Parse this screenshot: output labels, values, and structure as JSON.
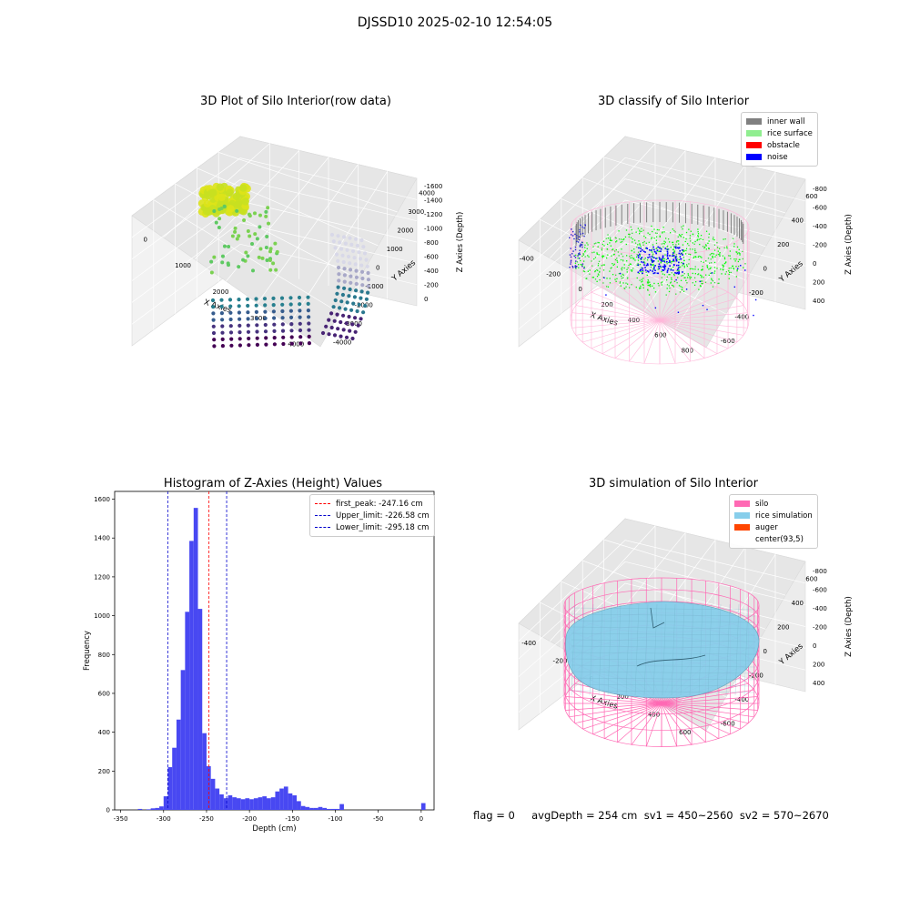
{
  "figure": {
    "title": "DJSSD10 2025-02-10 12:54:05",
    "footer": "flag = 0     avgDepth = 254 cm  sv1 = 450~2560  sv2 = 570~2670"
  },
  "colors": {
    "hist_bar": "#4848f2",
    "peak_line": "#ff0000",
    "limit_line": "#0000cc",
    "inner_wall": "#808080",
    "rice_surface": "#90ee90",
    "obstacle": "#ff0000",
    "noise": "#0000ff",
    "silo": "#ff69b4",
    "rice_simulation": "#87ceeb",
    "auger": "#ff4500"
  },
  "chart_data": [
    {
      "type": "scatter",
      "projection": "3d",
      "title": "3D Plot of Silo Interior(row data)",
      "xlabel": "X Axies",
      "ylabel": "Y Axies",
      "zlabel": "Z Axies (Depth)",
      "x_ticks": [
        "0",
        "1000",
        "2000",
        "3000",
        "4000"
      ],
      "y_ticks": [
        "-4000",
        "-3000",
        "-2000",
        "-1000",
        "0",
        "1000",
        "2000",
        "3000",
        "4000"
      ],
      "z_ticks": [
        "-1600",
        "-1400",
        "-1200",
        "-1000",
        "-800",
        "-600",
        "-400",
        "-200",
        "0"
      ],
      "colormap": "viridis"
    },
    {
      "type": "scatter",
      "projection": "3d",
      "title": "3D classify of Silo Interior",
      "xlabel": "X Axies",
      "ylabel": "Y Axies",
      "zlabel": "Z Axies (Depth)",
      "x_ticks": [
        "-400",
        "-200",
        "0",
        "200",
        "400",
        "600",
        "800"
      ],
      "y_ticks": [
        "-600",
        "-400",
        "-200",
        "0",
        "200",
        "400",
        "600"
      ],
      "z_ticks": [
        "-800",
        "-600",
        "-400",
        "-200",
        "0",
        "200",
        "400"
      ],
      "legend": [
        "inner wall",
        "rice surface",
        "obstacle",
        "noise"
      ],
      "legend_position": "top-right"
    },
    {
      "type": "bar",
      "title": "Histogram of Z-Axies (Height) Values",
      "xlabel": "Depth (cm)",
      "ylabel": "Frequency",
      "xlim": [
        -357,
        15
      ],
      "ylim": [
        0,
        1640
      ],
      "x_ticks": [
        -350,
        -300,
        -250,
        -200,
        -150,
        -100,
        -50,
        0
      ],
      "y_ticks": [
        0,
        200,
        400,
        600,
        800,
        1000,
        1200,
        1400,
        1600
      ],
      "bin_width": 5,
      "bins_start": [
        -350,
        -345,
        -340,
        -335,
        -330,
        -325,
        -320,
        -315,
        -310,
        -305,
        -300,
        -295,
        -290,
        -285,
        -280,
        -275,
        -270,
        -265,
        -260,
        -255,
        -250,
        -245,
        -240,
        -235,
        -230,
        -225,
        -220,
        -215,
        -210,
        -205,
        -200,
        -195,
        -190,
        -185,
        -180,
        -175,
        -170,
        -165,
        -160,
        -155,
        -150,
        -145,
        -140,
        -135,
        -130,
        -125,
        -120,
        -115,
        -110,
        -105,
        -100,
        -95,
        -90,
        -85,
        -80,
        -75,
        -70,
        -65,
        -60,
        -55,
        -50,
        -45,
        -40,
        -35,
        -30,
        -25,
        -20,
        -15,
        -10,
        -5,
        0
      ],
      "values": [
        0,
        0,
        0,
        0,
        5,
        0,
        3,
        8,
        10,
        18,
        70,
        220,
        320,
        465,
        720,
        1020,
        1385,
        1555,
        1035,
        395,
        225,
        160,
        110,
        80,
        60,
        75,
        65,
        60,
        55,
        60,
        55,
        60,
        65,
        70,
        60,
        65,
        95,
        110,
        120,
        85,
        75,
        45,
        20,
        15,
        10,
        10,
        15,
        10,
        5,
        5,
        5,
        30,
        0,
        0,
        0,
        0,
        0,
        0,
        0,
        0,
        0,
        0,
        0,
        0,
        0,
        0,
        0,
        0,
        0,
        0,
        35
      ],
      "vlines": [
        {
          "label": "first_peak: -247.16 cm",
          "x": -247.16,
          "style": "red-dashed"
        },
        {
          "label": "Upper_limit: -226.58 cm",
          "x": -226.58,
          "style": "blue-dashed"
        },
        {
          "label": "Lower_limit: -295.18 cm",
          "x": -295.18,
          "style": "blue-dashed"
        }
      ],
      "legend_position": "top-right"
    },
    {
      "type": "surface",
      "projection": "3d",
      "title": "3D simulation of Silo Interior",
      "xlabel": "X Axies",
      "ylabel": "Y Axies",
      "zlabel": "Z Axies (Depth)",
      "x_ticks": [
        "-400",
        "-200",
        "0",
        "200",
        "400",
        "600"
      ],
      "y_ticks": [
        "-600",
        "-400",
        "-200",
        "0",
        "200",
        "400",
        "600"
      ],
      "z_ticks": [
        "-800",
        "-600",
        "-400",
        "-200",
        "0",
        "200",
        "400"
      ],
      "legend": [
        "silo",
        "rice simulation",
        "auger",
        "center(93,5)"
      ],
      "legend_position": "top-right"
    }
  ]
}
